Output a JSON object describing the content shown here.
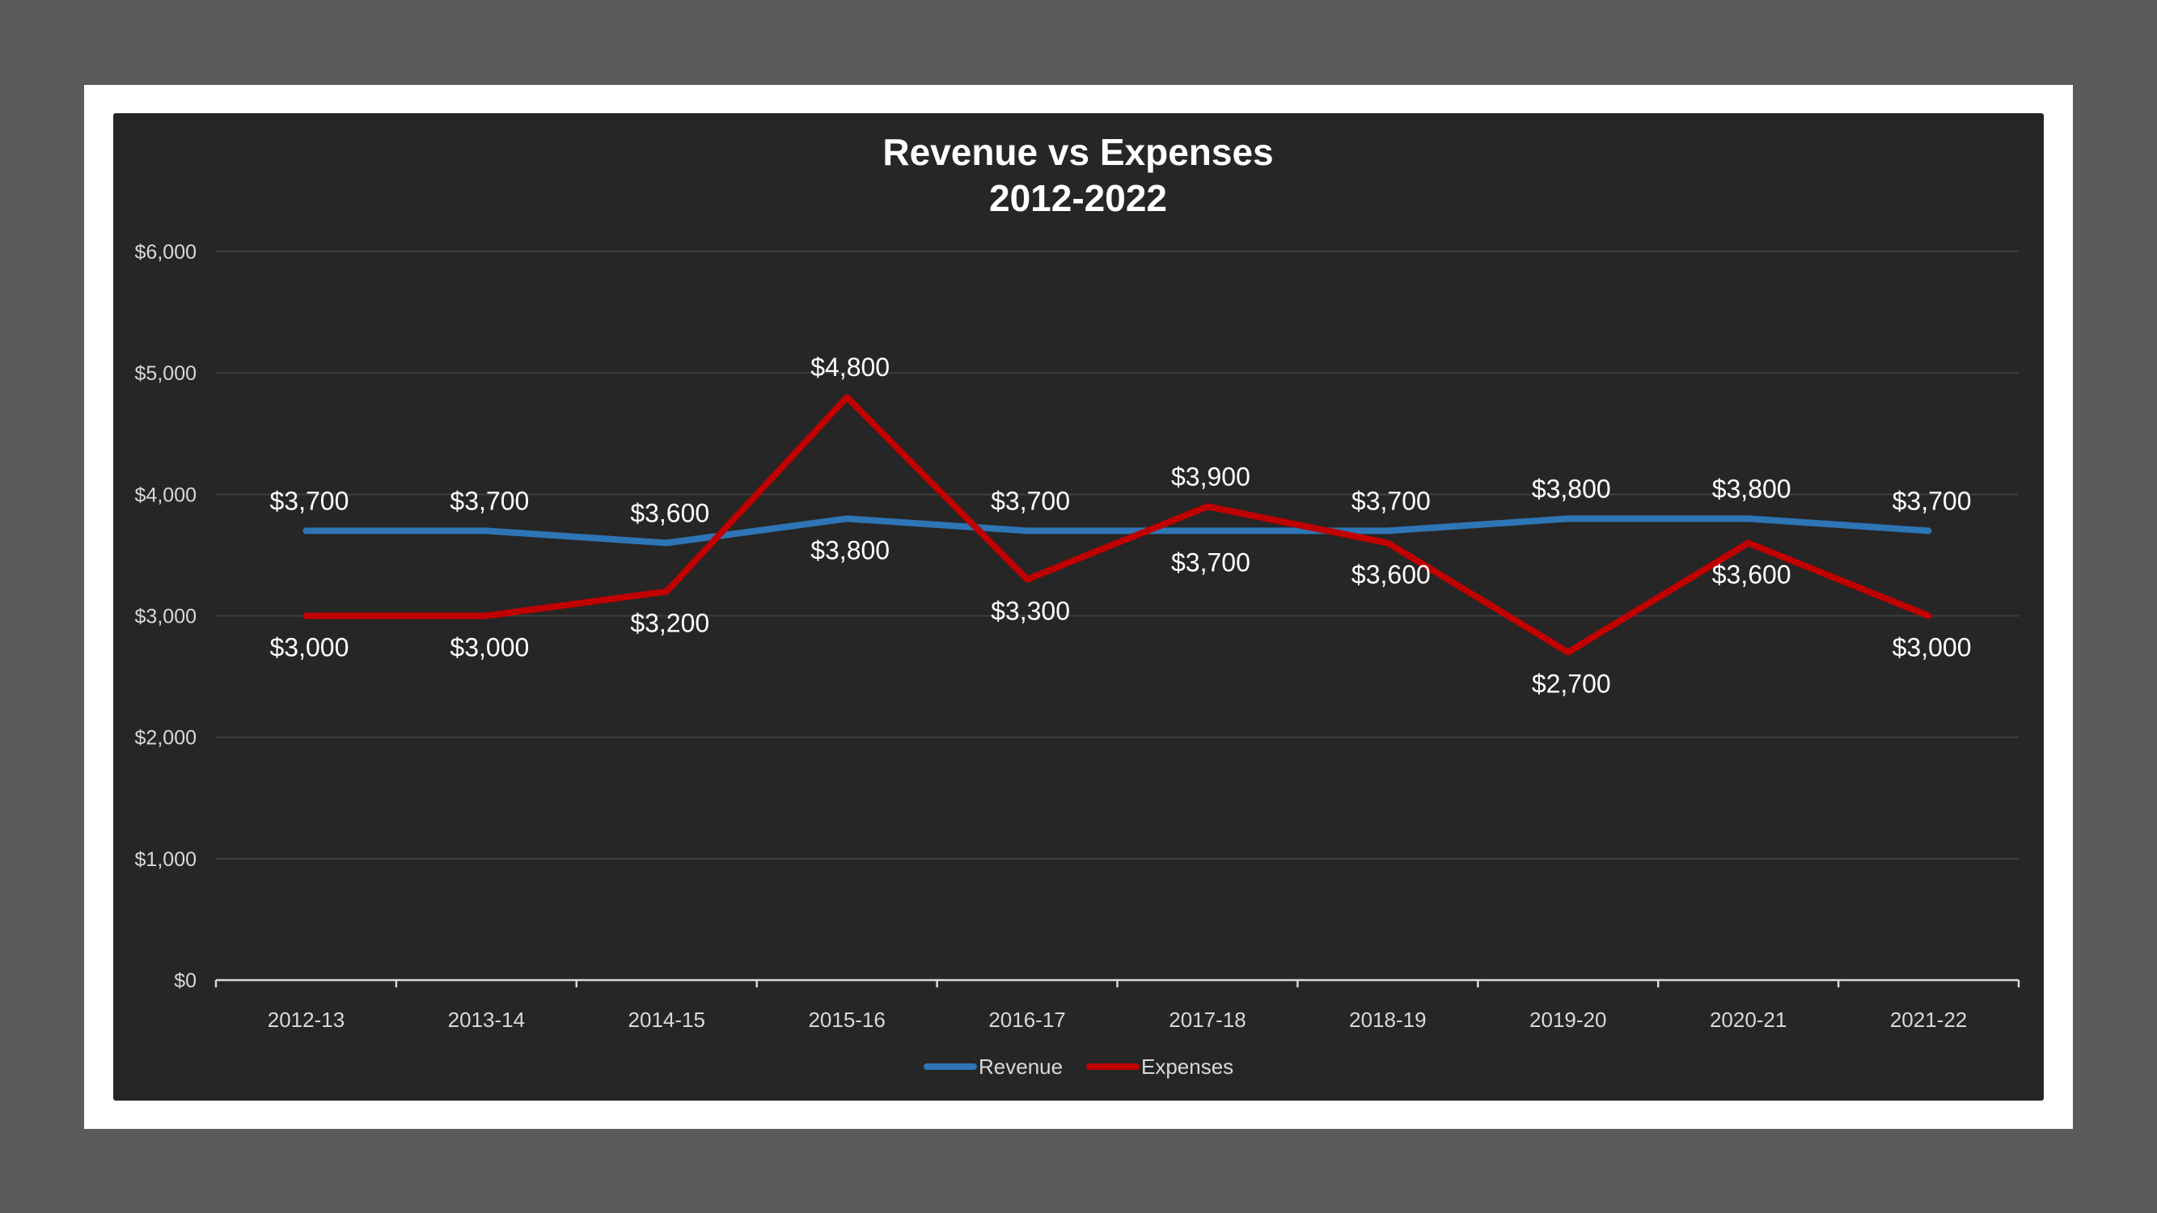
{
  "chart_data": {
    "type": "line",
    "title_lines": [
      "Revenue vs Expenses",
      "2012-2022"
    ],
    "categories": [
      "2012-13",
      "2013-14",
      "2014-15",
      "2015-16",
      "2016-17",
      "2017-18",
      "2018-19",
      "2019-20",
      "2020-21",
      "2021-22"
    ],
    "series": [
      {
        "name": "Revenue",
        "color": "#2e75b6",
        "values": [
          3700,
          3700,
          3600,
          3800,
          3700,
          3700,
          3700,
          3800,
          3800,
          3700
        ],
        "labels": [
          "$3,700",
          "$3,700",
          "$3,600",
          "$3,800",
          "$3,700",
          "$3,700",
          "$3,700",
          "$3,800",
          "$3,800",
          "$3,700"
        ],
        "label_pos": [
          "above",
          "above",
          "above",
          "below",
          "above",
          "below",
          "above",
          "above",
          "above",
          "above"
        ]
      },
      {
        "name": "Expenses",
        "color": "#c00000",
        "values": [
          3000,
          3000,
          3200,
          4800,
          3300,
          3900,
          3600,
          2700,
          3600,
          3000
        ],
        "labels": [
          "$3,000",
          "$3,000",
          "$3,200",
          "$4,800",
          "$3,300",
          "$3,900",
          "$3,600",
          "$2,700",
          "$3,600",
          "$3,000"
        ],
        "label_pos": [
          "below",
          "below",
          "below",
          "above",
          "below",
          "above",
          "below",
          "below",
          "below",
          "below"
        ]
      }
    ],
    "yticks": [
      0,
      1000,
      2000,
      3000,
      4000,
      5000,
      6000
    ],
    "ytick_labels": [
      "$0",
      "$1,000",
      "$2,000",
      "$3,000",
      "$4,000",
      "$5,000",
      "$6,000"
    ],
    "ylim": [
      0,
      6000
    ],
    "grid": true,
    "legend_position": "bottom",
    "background": "#262626"
  }
}
